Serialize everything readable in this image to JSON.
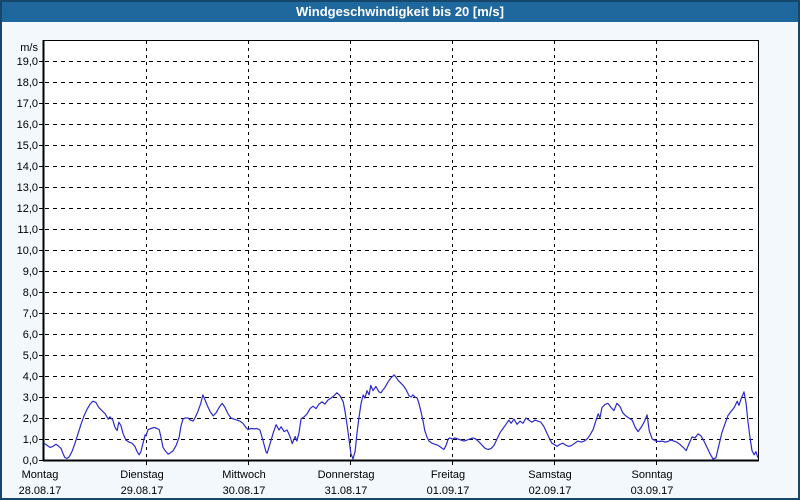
{
  "header": {
    "title": "Windgeschwindigkeit bis 20 [m/s]"
  },
  "colors": {
    "frame_border": "#17466b",
    "header_bg": "#1f689e",
    "header_text": "#ffffff",
    "page_bg": "#f2f8fc",
    "plot_bg": "#ffffff",
    "grid": "#000000",
    "axis_text": "#000000",
    "line": "#2b2bcc"
  },
  "chart_data": {
    "type": "line",
    "title": "Windgeschwindigkeit bis 20 [m/s]",
    "y_unit_label": "m/s",
    "ylim": [
      0,
      20
    ],
    "ytick_step": 1,
    "ytick_labels": [
      "0,0",
      "1,0",
      "2,0",
      "3,0",
      "4,0",
      "5,0",
      "6,0",
      "7,0",
      "8,0",
      "9,0",
      "10,0",
      "11,0",
      "12,0",
      "13,0",
      "14,0",
      "15,0",
      "16,0",
      "17,0",
      "18,0",
      "19,0"
    ],
    "x_unit": "hours",
    "xlim": [
      0,
      168
    ],
    "grid": "dashed",
    "legend_position": "none",
    "x_day_ticks": [
      {
        "name": "Montag",
        "date": "28.08.17",
        "hour": 0
      },
      {
        "name": "Dienstag",
        "date": "29.08.17",
        "hour": 24
      },
      {
        "name": "Mittwoch",
        "date": "30.08.17",
        "hour": 48
      },
      {
        "name": "Donnerstag",
        "date": "31.08.17",
        "hour": 72
      },
      {
        "name": "Freitag",
        "date": "01.09.17",
        "hour": 96
      },
      {
        "name": "Samstag",
        "date": "02.09.17",
        "hour": 120
      },
      {
        "name": "Sonntag",
        "date": "03.09.17",
        "hour": 144
      }
    ],
    "series": [
      {
        "name": "Windgeschwindigkeit",
        "color": "#2b2bcc",
        "points": [
          [
            0,
            0.8
          ],
          [
            0.7,
            0.7
          ],
          [
            1.4,
            0.6
          ],
          [
            2.1,
            0.65
          ],
          [
            2.8,
            0.75
          ],
          [
            3.5,
            0.65
          ],
          [
            4,
            0.55
          ],
          [
            4.5,
            0.3
          ],
          [
            4.9,
            0.12
          ],
          [
            5.4,
            0.07
          ],
          [
            5.9,
            0.15
          ],
          [
            6.6,
            0.4
          ],
          [
            7.3,
            0.8
          ],
          [
            8,
            1.25
          ],
          [
            8.7,
            1.7
          ],
          [
            9.4,
            2.1
          ],
          [
            10.1,
            2.4
          ],
          [
            10.8,
            2.65
          ],
          [
            11.5,
            2.8
          ],
          [
            12.2,
            2.75
          ],
          [
            12.9,
            2.5
          ],
          [
            13.6,
            2.35
          ],
          [
            14.4,
            2.2
          ],
          [
            15.1,
            1.95
          ],
          [
            15.5,
            2.05
          ],
          [
            16.2,
            1.9
          ],
          [
            16.7,
            1.55
          ],
          [
            17.2,
            1.4
          ],
          [
            17.6,
            1.8
          ],
          [
            18.1,
            1.65
          ],
          [
            18.6,
            1.25
          ],
          [
            19.3,
            0.95
          ],
          [
            20,
            0.85
          ],
          [
            20.7,
            0.8
          ],
          [
            21.4,
            0.65
          ],
          [
            21.9,
            0.4
          ],
          [
            22.4,
            0.25
          ],
          [
            22.8,
            0.4
          ],
          [
            23.3,
            0.8
          ],
          [
            23.8,
            1.2
          ],
          [
            24,
            1.15
          ],
          [
            24.5,
            1.45
          ],
          [
            25.2,
            1.5
          ],
          [
            25.9,
            1.55
          ],
          [
            26.6,
            1.5
          ],
          [
            27.1,
            1.45
          ],
          [
            27.5,
            1.1
          ],
          [
            28,
            0.6
          ],
          [
            28.5,
            0.45
          ],
          [
            29.2,
            0.28
          ],
          [
            29.6,
            0.32
          ],
          [
            30.4,
            0.45
          ],
          [
            31.1,
            0.7
          ],
          [
            31.8,
            1.1
          ],
          [
            32.2,
            1.6
          ],
          [
            32.7,
            1.95
          ],
          [
            33.2,
            2
          ],
          [
            33.9,
            2
          ],
          [
            34.4,
            1.9
          ],
          [
            35.1,
            1.85
          ],
          [
            35.5,
            2
          ],
          [
            36.2,
            2.3
          ],
          [
            36.9,
            2.7
          ],
          [
            37.4,
            3.1
          ],
          [
            37.9,
            2.85
          ],
          [
            38.4,
            2.6
          ],
          [
            39.1,
            2.3
          ],
          [
            39.8,
            2.1
          ],
          [
            40.5,
            2.25
          ],
          [
            41.2,
            2.5
          ],
          [
            41.9,
            2.7
          ],
          [
            42.6,
            2.5
          ],
          [
            43.3,
            2.2
          ],
          [
            44,
            2
          ],
          [
            44.7,
            1.95
          ],
          [
            45.4,
            1.9
          ],
          [
            46.1,
            1.85
          ],
          [
            46.8,
            1.75
          ],
          [
            47.5,
            1.55
          ],
          [
            48,
            1.45
          ],
          [
            48.7,
            1.5
          ],
          [
            49.4,
            1.48
          ],
          [
            50.1,
            1.5
          ],
          [
            50.8,
            1.43
          ],
          [
            51.5,
            0.95
          ],
          [
            52.2,
            0.4
          ],
          [
            52.5,
            0.32
          ],
          [
            53.2,
            0.78
          ],
          [
            53.9,
            1.27
          ],
          [
            54.6,
            1.68
          ],
          [
            55.3,
            1.43
          ],
          [
            55.8,
            1.58
          ],
          [
            56.5,
            1.35
          ],
          [
            57.2,
            1.43
          ],
          [
            57.9,
            1.1
          ],
          [
            58.4,
            0.78
          ],
          [
            59.1,
            1.12
          ],
          [
            59.5,
            0.9
          ],
          [
            60,
            1.3
          ],
          [
            60.5,
            1.96
          ],
          [
            61.2,
            2.05
          ],
          [
            61.9,
            2.2
          ],
          [
            62.6,
            2.45
          ],
          [
            63.3,
            2.56
          ],
          [
            64,
            2.45
          ],
          [
            64.7,
            2.66
          ],
          [
            65.4,
            2.77
          ],
          [
            66.1,
            2.66
          ],
          [
            66.8,
            2.85
          ],
          [
            67.5,
            2.95
          ],
          [
            68.2,
            3.05
          ],
          [
            68.9,
            3.2
          ],
          [
            69.6,
            3.08
          ],
          [
            70.4,
            2.77
          ],
          [
            70.8,
            2.35
          ],
          [
            71.3,
            1.7
          ],
          [
            71.8,
            0.95
          ],
          [
            72.2,
            0.3
          ],
          [
            72.7,
            0.05
          ],
          [
            73.2,
            0.4
          ],
          [
            73.6,
            1.2
          ],
          [
            74.1,
            2
          ],
          [
            74.6,
            2.7
          ],
          [
            75.1,
            3.1
          ],
          [
            75.5,
            2.95
          ],
          [
            76,
            3.3
          ],
          [
            76.5,
            3.1
          ],
          [
            76.9,
            3.55
          ],
          [
            77.4,
            3.3
          ],
          [
            78.1,
            3.5
          ],
          [
            78.8,
            3.25
          ],
          [
            79.3,
            3.2
          ],
          [
            79.8,
            3.35
          ],
          [
            80.2,
            3.45
          ],
          [
            80.9,
            3.7
          ],
          [
            81.6,
            3.9
          ],
          [
            82.4,
            4.05
          ],
          [
            82.8,
            3.95
          ],
          [
            83.3,
            3.8
          ],
          [
            83.8,
            3.7
          ],
          [
            84.5,
            3.55
          ],
          [
            85.2,
            3.35
          ],
          [
            85.9,
            3.05
          ],
          [
            86.4,
            3
          ],
          [
            86.8,
            3.1
          ],
          [
            87.3,
            3
          ],
          [
            87.8,
            2.95
          ],
          [
            88.2,
            2.7
          ],
          [
            88.7,
            2.3
          ],
          [
            89.2,
            1.85
          ],
          [
            89.6,
            1.4
          ],
          [
            90.1,
            1.1
          ],
          [
            90.6,
            0.9
          ],
          [
            91.3,
            0.8
          ],
          [
            92,
            0.75
          ],
          [
            92.7,
            0.7
          ],
          [
            93.4,
            0.6
          ],
          [
            94.1,
            0.5
          ],
          [
            94.6,
            0.7
          ],
          [
            95.1,
            1
          ],
          [
            95.5,
            1.05
          ],
          [
            96,
            1
          ],
          [
            96.7,
            1.05
          ],
          [
            97.4,
            1
          ],
          [
            98.1,
            0.95
          ],
          [
            98.8,
            0.9
          ],
          [
            99.5,
            0.95
          ],
          [
            100.2,
            1
          ],
          [
            100.9,
            1.05
          ],
          [
            101.6,
            1
          ],
          [
            102.4,
            0.85
          ],
          [
            103.1,
            0.7
          ],
          [
            103.8,
            0.55
          ],
          [
            104.5,
            0.5
          ],
          [
            105.2,
            0.55
          ],
          [
            105.9,
            0.7
          ],
          [
            106.6,
            1
          ],
          [
            107.3,
            1.3
          ],
          [
            108,
            1.5
          ],
          [
            108.7,
            1.7
          ],
          [
            109.4,
            1.9
          ],
          [
            109.9,
            1.75
          ],
          [
            110.6,
            1.95
          ],
          [
            111.3,
            1.7
          ],
          [
            112,
            1.85
          ],
          [
            112.7,
            1.75
          ],
          [
            113.4,
            2
          ],
          [
            114.1,
            1.9
          ],
          [
            114.8,
            1.8
          ],
          [
            115.5,
            1.9
          ],
          [
            116.2,
            1.85
          ],
          [
            116.9,
            1.8
          ],
          [
            117.6,
            1.6
          ],
          [
            118.4,
            1.25
          ],
          [
            119.1,
            0.95
          ],
          [
            119.5,
            0.8
          ],
          [
            120,
            0.75
          ],
          [
            120.7,
            0.65
          ],
          [
            121.4,
            0.75
          ],
          [
            122.1,
            0.8
          ],
          [
            122.8,
            0.7
          ],
          [
            123.5,
            0.65
          ],
          [
            124.2,
            0.7
          ],
          [
            124.9,
            0.8
          ],
          [
            125.6,
            0.9
          ],
          [
            126.4,
            0.85
          ],
          [
            127.1,
            0.9
          ],
          [
            127.8,
            1
          ],
          [
            128.5,
            1.2
          ],
          [
            129.2,
            1.45
          ],
          [
            129.9,
            1.9
          ],
          [
            130.4,
            2.2
          ],
          [
            130.8,
            2
          ],
          [
            131.3,
            2.5
          ],
          [
            132,
            2.65
          ],
          [
            132.7,
            2.7
          ],
          [
            133.4,
            2.5
          ],
          [
            134.1,
            2.35
          ],
          [
            134.8,
            2.7
          ],
          [
            135.5,
            2.55
          ],
          [
            136.2,
            2.25
          ],
          [
            136.9,
            2.1
          ],
          [
            137.6,
            2
          ],
          [
            138.4,
            1.9
          ],
          [
            139.1,
            1.55
          ],
          [
            139.8,
            1.35
          ],
          [
            140.5,
            1.55
          ],
          [
            141.2,
            1.8
          ],
          [
            141.9,
            2.15
          ],
          [
            142.4,
            1.4
          ],
          [
            143.1,
            1
          ],
          [
            144,
            0.9
          ],
          [
            144.7,
            0.88
          ],
          [
            145.4,
            0.9
          ],
          [
            146.1,
            0.85
          ],
          [
            146.8,
            0.88
          ],
          [
            147.5,
            0.95
          ],
          [
            148.2,
            0.9
          ],
          [
            148.9,
            0.85
          ],
          [
            149.6,
            0.75
          ],
          [
            150.4,
            0.6
          ],
          [
            151.1,
            0.45
          ],
          [
            151.8,
            0.8
          ],
          [
            152.5,
            1.1
          ],
          [
            153.2,
            1.05
          ],
          [
            153.9,
            1.25
          ],
          [
            154.6,
            1.15
          ],
          [
            155.3,
            0.9
          ],
          [
            156,
            0.6
          ],
          [
            156.7,
            0.3
          ],
          [
            157.4,
            0.05
          ],
          [
            158.1,
            0.1
          ],
          [
            158.8,
            0.7
          ],
          [
            159.5,
            1.3
          ],
          [
            160.2,
            1.7
          ],
          [
            160.9,
            2.1
          ],
          [
            161.6,
            2.3
          ],
          [
            162.4,
            2.5
          ],
          [
            163.1,
            2.8
          ],
          [
            163.5,
            2.6
          ],
          [
            164,
            2.9
          ],
          [
            164.7,
            3.25
          ],
          [
            165.2,
            2.7
          ],
          [
            165.6,
            1.9
          ],
          [
            166.1,
            1.1
          ],
          [
            166.6,
            0.45
          ],
          [
            167.1,
            0.25
          ],
          [
            167.5,
            0.4
          ],
          [
            168,
            0.1
          ]
        ]
      }
    ]
  }
}
